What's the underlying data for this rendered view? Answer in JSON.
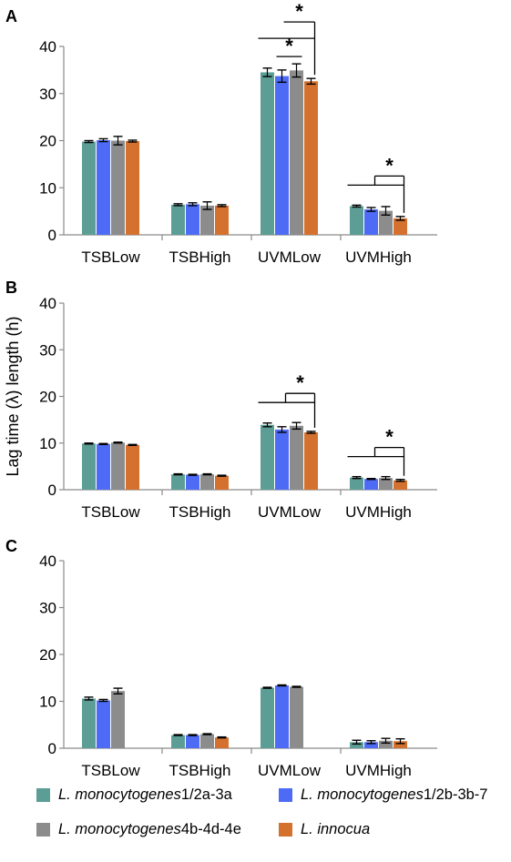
{
  "chart_data": [
    {
      "type": "bar",
      "panel_label": "A",
      "categories": [
        "TSBLow",
        "TSBHigh",
        "UVMLow",
        "UVMHigh"
      ],
      "series": [
        {
          "name": "L. monocytogenes 1/2a-3a",
          "values": [
            19.8,
            6.4,
            34.5,
            6.1
          ],
          "errors": [
            0.2,
            0.2,
            0.9,
            0.2
          ]
        },
        {
          "name": "L. monocytogenes 1/2b-3b-7",
          "values": [
            20.1,
            6.5,
            33.7,
            5.4
          ],
          "errors": [
            0.3,
            0.3,
            1.3,
            0.4
          ]
        },
        {
          "name": "L. monocytogenes 4b-4d-4e",
          "values": [
            20.0,
            6.2,
            34.9,
            5.1
          ],
          "errors": [
            0.9,
            0.8,
            1.4,
            0.9
          ]
        },
        {
          "name": "L. innocua",
          "values": [
            19.9,
            6.2,
            32.6,
            3.5
          ],
          "errors": [
            0.2,
            0.2,
            0.6,
            0.4
          ]
        }
      ],
      "ylim": [
        0,
        40
      ],
      "yticks": [
        "0",
        "10",
        "20",
        "30",
        "40"
      ],
      "significance": [
        {
          "category": 2,
          "from_series": 0,
          "to_series": 3,
          "label": "*"
        },
        {
          "category": 2,
          "from_series": 1,
          "to_series": 2,
          "label": "*"
        },
        {
          "category": 3,
          "from_series": 0,
          "to_series": 3,
          "label": "*"
        }
      ]
    },
    {
      "type": "bar",
      "panel_label": "B",
      "ylabel": "Lag time (λ) length (h)",
      "categories": [
        "TSBLow",
        "TSBHigh",
        "UVMLow",
        "UVMHigh"
      ],
      "series": [
        {
          "name": "L. monocytogenes 1/2a-3a",
          "values": [
            9.9,
            3.3,
            13.9,
            2.6
          ],
          "errors": [
            0.1,
            0.1,
            0.4,
            0.2
          ]
        },
        {
          "name": "L. monocytogenes 1/2b-3b-7",
          "values": [
            9.8,
            3.2,
            12.9,
            2.3
          ],
          "errors": [
            0.1,
            0.1,
            0.6,
            0.1
          ]
        },
        {
          "name": "L. monocytogenes 4b-4d-4e",
          "values": [
            10.1,
            3.3,
            13.7,
            2.5
          ],
          "errors": [
            0.1,
            0.1,
            0.7,
            0.3
          ]
        },
        {
          "name": "L. innocua",
          "values": [
            9.6,
            3.0,
            12.3,
            2.0
          ],
          "errors": [
            0.1,
            0.1,
            0.2,
            0.2
          ]
        }
      ],
      "ylim": [
        0,
        40
      ],
      "yticks": [
        "0",
        "10",
        "20",
        "30",
        "40"
      ],
      "significance": [
        {
          "category": 2,
          "from_series": 0,
          "to_series": 3,
          "label": "*"
        },
        {
          "category": 3,
          "from_series": 0,
          "to_series": 3,
          "label": "*"
        }
      ]
    },
    {
      "type": "bar",
      "panel_label": "C",
      "categories": [
        "TSBLow",
        "TSBHigh",
        "UVMLow",
        "UVMHigh"
      ],
      "series": [
        {
          "name": "L. monocytogenes 1/2a-3a",
          "values": [
            10.6,
            2.8,
            12.9,
            1.3
          ],
          "errors": [
            0.3,
            0.1,
            0.1,
            0.4
          ]
        },
        {
          "name": "L. monocytogenes 1/2b-3b-7",
          "values": [
            10.2,
            2.8,
            13.4,
            1.3
          ],
          "errors": [
            0.2,
            0.1,
            0.1,
            0.3
          ]
        },
        {
          "name": "L. monocytogenes 4b-4d-4e",
          "values": [
            12.2,
            3.0,
            13.1,
            1.6
          ],
          "errors": [
            0.6,
            0.1,
            0.1,
            0.5
          ]
        },
        {
          "name": "L. innocua",
          "values": [
            null,
            2.3,
            null,
            1.5
          ],
          "errors": [
            null,
            0.1,
            null,
            0.5
          ]
        }
      ],
      "ylim": [
        0,
        40
      ],
      "yticks": [
        "0",
        "10",
        "20",
        "30",
        "40"
      ],
      "significance": []
    }
  ],
  "legend": [
    {
      "species": "L. monocytogenes",
      "serotype": " 1/2a-3a",
      "color": "#5c9e95"
    },
    {
      "species": "L. monocytogenes",
      "serotype": " 1/2b-3b-7",
      "color": "#4d6bf5"
    },
    {
      "species": "L. monocytogenes",
      "serotype": " 4b-4d-4e",
      "color": "#8c8c8c"
    },
    {
      "species": "L. innocua",
      "serotype": "",
      "color": "#d4712f"
    }
  ],
  "colors": {
    "series": [
      "#5c9e95",
      "#4d6bf5",
      "#8c8c8c",
      "#d4712f"
    ],
    "axis": "#8a8a8a",
    "error_bar": "#000000"
  }
}
